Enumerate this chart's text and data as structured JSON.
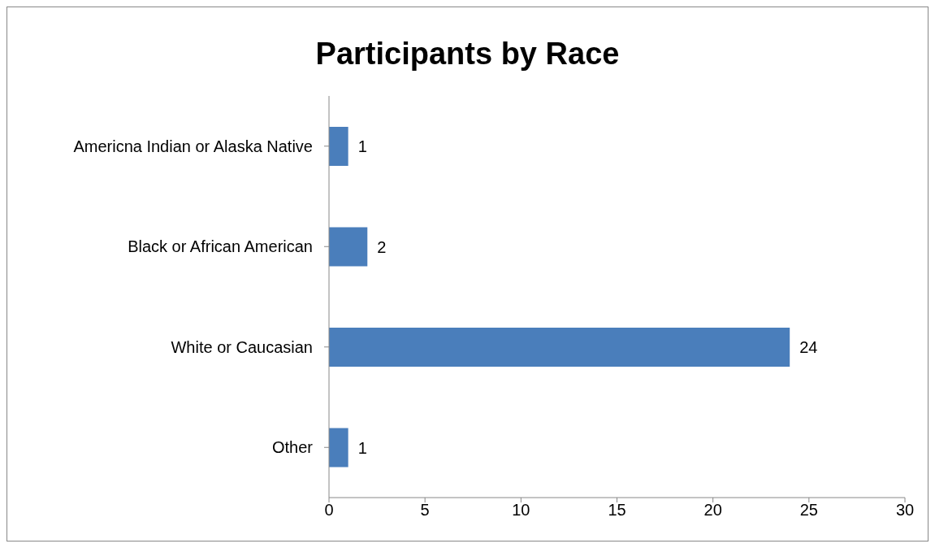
{
  "chart_data": {
    "type": "bar",
    "title": "Participants by Race",
    "orientation": "horizontal",
    "categories": [
      "Americna Indian or Alaska Native",
      "Black or African American",
      "White or Caucasian",
      "Other"
    ],
    "values": [
      1,
      2,
      24,
      1
    ],
    "color": "#4a7ebb",
    "xlim": [
      0,
      30
    ],
    "xticks": [
      0,
      5,
      10,
      15,
      20,
      25,
      30
    ],
    "grid": false,
    "data_labels": true
  }
}
